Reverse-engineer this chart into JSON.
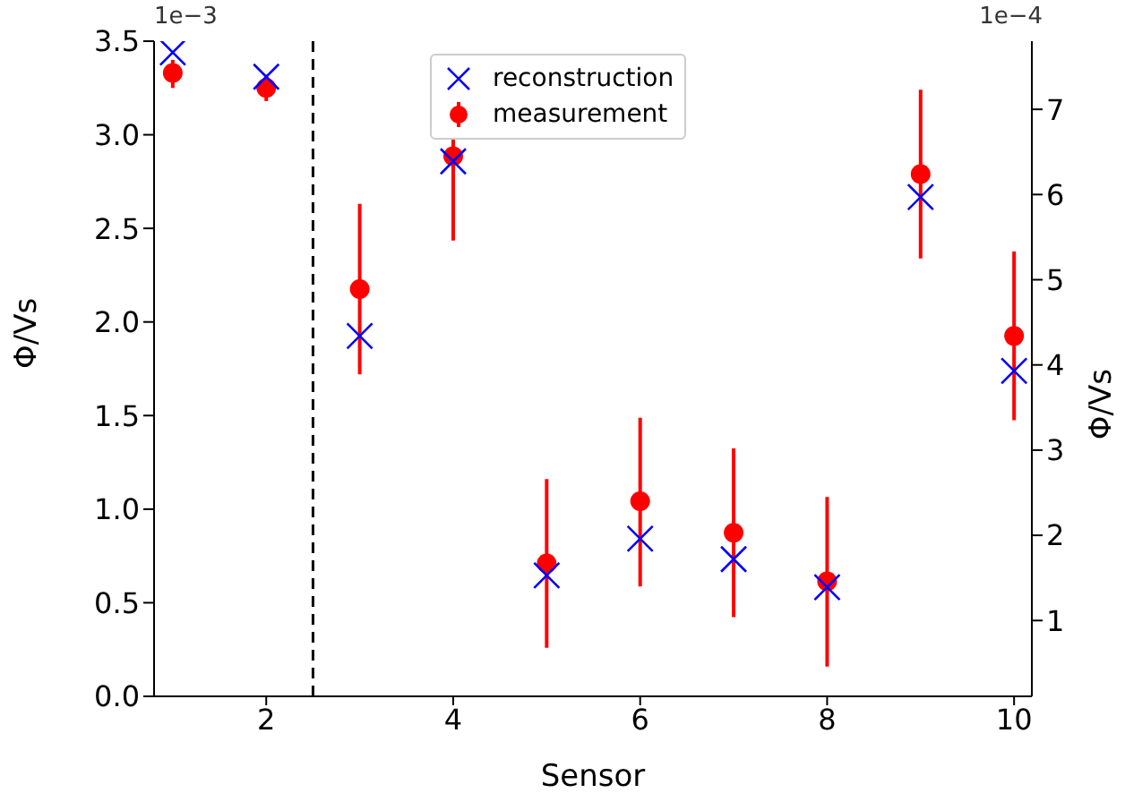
{
  "chart_data": {
    "type": "scatter",
    "xlabel": "Sensor",
    "ylabel": "Φ/Vs",
    "y2label": "Φ/Vs",
    "xlim": [
      0.8,
      10.19
    ],
    "xticks": [
      2,
      4,
      6,
      8,
      10
    ],
    "ylim": [
      0,
      3.5
    ],
    "yticks": [
      {
        "value": 0,
        "label": "0.0"
      },
      0.5,
      {
        "value": 1,
        "label": "1.0"
      },
      1.5,
      {
        "value": 2,
        "label": "2.0"
      },
      2.5,
      {
        "value": 3,
        "label": "3.0"
      },
      3.5
    ],
    "y2lim": [
      0.11,
      7.8
    ],
    "y2ticks": [
      1,
      2,
      3,
      4,
      5,
      6,
      7
    ],
    "annotations": [
      "1e−3",
      "1e−4"
    ],
    "ref_lines": [
      {
        "axis": "x",
        "value": 2.5,
        "color": "#000000",
        "line_style": "dashed"
      }
    ],
    "legend": "top",
    "grid": false,
    "series": [
      {
        "name": "reconstruction",
        "color": "#0000ff",
        "marker": "cross",
        "axis": "y",
        "x": [
          1,
          2
        ],
        "values": [
          3.44,
          3.31
        ]
      },
      {
        "color": "#0000ff",
        "marker": "cross",
        "axis": "y2",
        "x": [
          3,
          4,
          5,
          6,
          7,
          8,
          9,
          10
        ],
        "values": [
          4.34,
          6.39,
          1.53,
          1.96,
          1.72,
          1.39,
          5.97,
          3.93
        ]
      },
      {
        "name": "measurement",
        "color": "#ff0000",
        "marker": "circle",
        "axis": "y",
        "x": [
          1,
          2
        ],
        "values": [
          3.33,
          3.25
        ],
        "errors": [
          [
            3.25,
            3.4
          ],
          [
            3.18,
            3.32
          ]
        ]
      },
      {
        "color": "#ff0000",
        "marker": "circle",
        "axis": "y2",
        "x": [
          3,
          4,
          5,
          6,
          7,
          8,
          9,
          10
        ],
        "values": [
          4.89,
          6.45,
          1.67,
          2.4,
          2.03,
          1.46,
          6.24,
          4.34
        ],
        "errors": [
          [
            3.89,
            5.89
          ],
          [
            5.46,
            7.44
          ],
          [
            0.68,
            2.66
          ],
          [
            1.4,
            3.38
          ],
          [
            1.04,
            3.02
          ],
          [
            0.46,
            2.45
          ],
          [
            5.25,
            7.23
          ],
          [
            3.35,
            5.33
          ]
        ]
      }
    ]
  }
}
